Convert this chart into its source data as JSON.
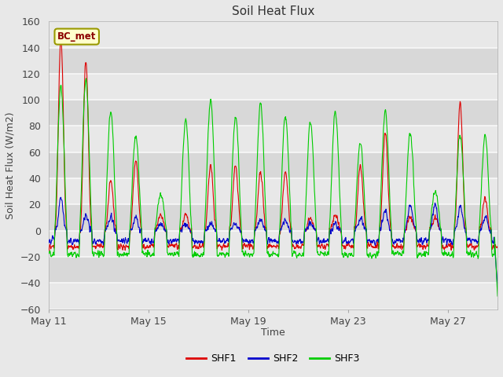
{
  "title": "Soil Heat Flux",
  "ylabel": "Soil Heat Flux (W/m2)",
  "xlabel": "Time",
  "ylim": [
    -60,
    160
  ],
  "yticks": [
    -60,
    -40,
    -20,
    0,
    20,
    40,
    60,
    80,
    100,
    120,
    140,
    160
  ],
  "fig_bg_color": "#e8e8e8",
  "plot_bg_color": "#e0e0e0",
  "grid_color": "#f0f0f0",
  "shf1_color": "#dd0000",
  "shf2_color": "#0000cc",
  "shf3_color": "#00cc00",
  "legend_label": "BC_met",
  "series_labels": [
    "SHF1",
    "SHF2",
    "SHF3"
  ],
  "xtick_labels": [
    "May 11",
    "May 15",
    "May 19",
    "May 23",
    "May 27"
  ],
  "xtick_positions": [
    0,
    4,
    8,
    12,
    16
  ],
  "n_days": 18,
  "figsize": [
    6.4,
    4.8
  ],
  "dpi": 100
}
